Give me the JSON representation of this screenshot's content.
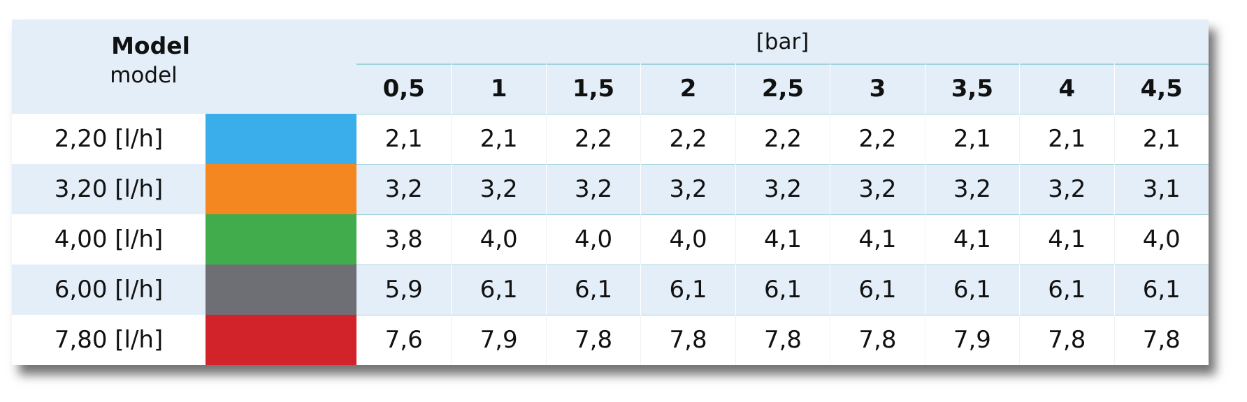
{
  "header": {
    "title": "Model",
    "subtitle": "model",
    "unit": "[bar]",
    "pressures": [
      "0,5",
      "1",
      "1,5",
      "2",
      "2,5",
      "3",
      "3,5",
      "4",
      "4,5"
    ]
  },
  "rows": [
    {
      "label": "2,20 [l/h]",
      "color": "#3aaeea",
      "values": [
        "2,1",
        "2,1",
        "2,2",
        "2,2",
        "2,2",
        "2,2",
        "2,1",
        "2,1",
        "2,1"
      ]
    },
    {
      "label": "3,20 [l/h]",
      "color": "#f58720",
      "values": [
        "3,2",
        "3,2",
        "3,2",
        "3,2",
        "3,2",
        "3,2",
        "3,2",
        "3,2",
        "3,1"
      ]
    },
    {
      "label": "4,00 [l/h]",
      "color": "#41ac4b",
      "values": [
        "3,8",
        "4,0",
        "4,0",
        "4,0",
        "4,1",
        "4,1",
        "4,1",
        "4,1",
        "4,0"
      ]
    },
    {
      "label": "6,00 [l/h]",
      "color": "#6e6f74",
      "values": [
        "5,9",
        "6,1",
        "6,1",
        "6,1",
        "6,1",
        "6,1",
        "6,1",
        "6,1",
        "6,1"
      ]
    },
    {
      "label": "7,80 [l/h]",
      "color": "#d2232b",
      "values": [
        "7,6",
        "7,9",
        "7,8",
        "7,8",
        "7,8",
        "7,8",
        "7,9",
        "7,8",
        "7,8"
      ]
    }
  ]
}
